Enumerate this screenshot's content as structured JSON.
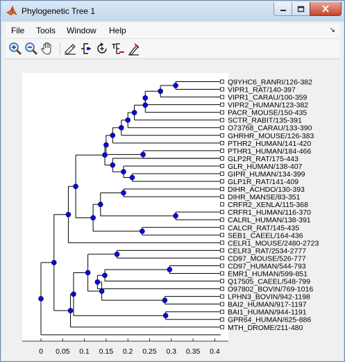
{
  "window": {
    "title": "Phylogenetic Tree 1",
    "controls": {
      "minimize_icon": "minimize-icon",
      "maximize_icon": "maximize-icon",
      "close_icon": "close-icon"
    }
  },
  "menubar": {
    "items": [
      "File",
      "Tools",
      "Window",
      "Help"
    ],
    "dock_arrow": "↘"
  },
  "toolbar": {
    "buttons": [
      {
        "name": "zoom-in-icon"
      },
      {
        "name": "zoom-out-icon"
      },
      {
        "name": "pan-hand-icon"
      },
      {
        "name": "inspect-icon"
      },
      {
        "name": "collapse-expand-icon"
      },
      {
        "name": "rotate-branch-icon"
      },
      {
        "name": "rename-icon"
      },
      {
        "name": "prune-icon"
      }
    ]
  },
  "colors": {
    "node": "#0b0bd9",
    "node_outline": "#000080",
    "plot_bg": "#ffffff",
    "figure_bg": "#f0f0f0"
  },
  "chart_data": {
    "type": "phylogenetic-tree",
    "x_ticks": [
      "0",
      "0.05",
      "0.1",
      "0.15",
      "0.2",
      "0.25",
      "0.3",
      "0.35",
      "0.4"
    ],
    "xlim": [
      -0.02,
      0.42
    ],
    "leaves": [
      "Q9YHC6_RANRI/126-382",
      "VIPR1_RAT/140-397",
      "VIPR1_CARAU/100-359",
      "VIPR2_HUMAN/123-382",
      "PACR_MOUSE/150-435",
      "SCTR_RABIT/135-391",
      "O73768_CARAU/133-390",
      "GHRHR_MOUSE/126-383",
      "PTHR2_HUMAN/141-420",
      "PTHR1_HUMAN/184-466",
      "GLP2R_RAT/175-443",
      "GLR_HUMAN/138-407",
      "GIPR_HUMAN/134-399",
      "GLP1R_RAT/141-409",
      "DIHR_ACHDO/130-393",
      "DIHR_MANSE/83-351",
      "CRFR2_XENLA/115-368",
      "CRFR1_HUMAN/116-370",
      "CALRL_HUMAN/138-391",
      "CALCR_RAT/145-435",
      "SEB1_CAEEL/164-436",
      "CELR1_MOUSE/2480-2723",
      "CELR3_RAT/2534-2777",
      "CD97_MOUSE/526-777",
      "CD97_HUMAN/544-793",
      "EMR1_HUMAN/599-851",
      "Q17505_CAEEL/548-799",
      "O97802_BOVIN/769-1016",
      "LPHN3_BOVIN/942-1198",
      "BAI2_HUMAN/917-1197",
      "BAI1_HUMAN/944-1191",
      "GPR64_HUMAN/625-886",
      "MTH_DROME/211-480"
    ],
    "leaf_x": [
      0.408,
      0.408,
      0.408,
      0.408,
      0.408,
      0.408,
      0.408,
      0.408,
      0.408,
      0.408,
      0.408,
      0.408,
      0.408,
      0.408,
      0.408,
      0.408,
      0.408,
      0.408,
      0.408,
      0.408,
      0.408,
      0.408,
      0.408,
      0.408,
      0.408,
      0.408,
      0.408,
      0.408,
      0.408,
      0.408,
      0.408,
      0.408,
      0.408
    ],
    "nodes": [
      {
        "x": 0.31,
        "children": [
          0,
          1
        ]
      },
      {
        "x": 0.275,
        "children": [
          -1,
          2
        ]
      },
      {
        "x": 0.24,
        "children": [
          -2,
          3
        ]
      },
      {
        "x": 0.24,
        "children": [
          -3,
          4
        ]
      },
      {
        "x": 0.215,
        "children": [
          -4,
          5
        ]
      },
      {
        "x": 0.2,
        "children": [
          -5,
          6
        ]
      },
      {
        "x": 0.185,
        "children": [
          -6,
          7
        ]
      },
      {
        "x": 0.165,
        "children": [
          -7,
          8
        ]
      },
      {
        "x": 0.235,
        "children": [
          9,
          10
        ]
      },
      {
        "x": 0.15,
        "children": [
          -8,
          -9
        ]
      },
      {
        "x": 0.21,
        "children": [
          12,
          13
        ]
      },
      {
        "x": 0.19,
        "children": [
          11,
          -11
        ]
      },
      {
        "x": 0.165,
        "children": [
          10,
          -12
        ]
      },
      {
        "x": 0.147,
        "children": [
          -10,
          -13
        ]
      },
      {
        "x": 0.19,
        "children": [
          14,
          15
        ]
      },
      {
        "x": 0.31,
        "children": [
          17,
          18
        ]
      },
      {
        "x": 0.137,
        "children": [
          -15,
          -16
        ]
      },
      {
        "x": 0.233,
        "children": [
          19,
          20
        ]
      },
      {
        "x": 0.12,
        "children": [
          -17,
          -18
        ]
      },
      {
        "x": 0.08,
        "children": [
          -14,
          -19
        ]
      },
      {
        "x": 0.063,
        "children": [
          -20,
          21
        ]
      },
      {
        "x": 0.296,
        "children": [
          24,
          25
        ]
      },
      {
        "x": 0.147,
        "children": [
          26,
          -22
        ]
      },
      {
        "x": 0.13,
        "children": [
          -23,
          27
        ]
      },
      {
        "x": 0.285,
        "children": [
          28,
          29
        ]
      },
      {
        "x": 0.14,
        "children": [
          -24,
          -25
        ]
      },
      {
        "x": 0.175,
        "children": [
          22,
          23
        ]
      },
      {
        "x": 0.108,
        "children": [
          -27,
          -26
        ]
      },
      {
        "x": 0.287,
        "children": [
          30,
          31
        ]
      },
      {
        "x": 0.075,
        "children": [
          -28,
          -29
        ]
      },
      {
        "x": 0.068,
        "children": [
          -30,
          32
        ]
      },
      {
        "x": 0.03,
        "children": [
          -21,
          -31
        ]
      },
      {
        "x": 0.0,
        "children": [
          -32,
          33
        ]
      }
    ]
  }
}
